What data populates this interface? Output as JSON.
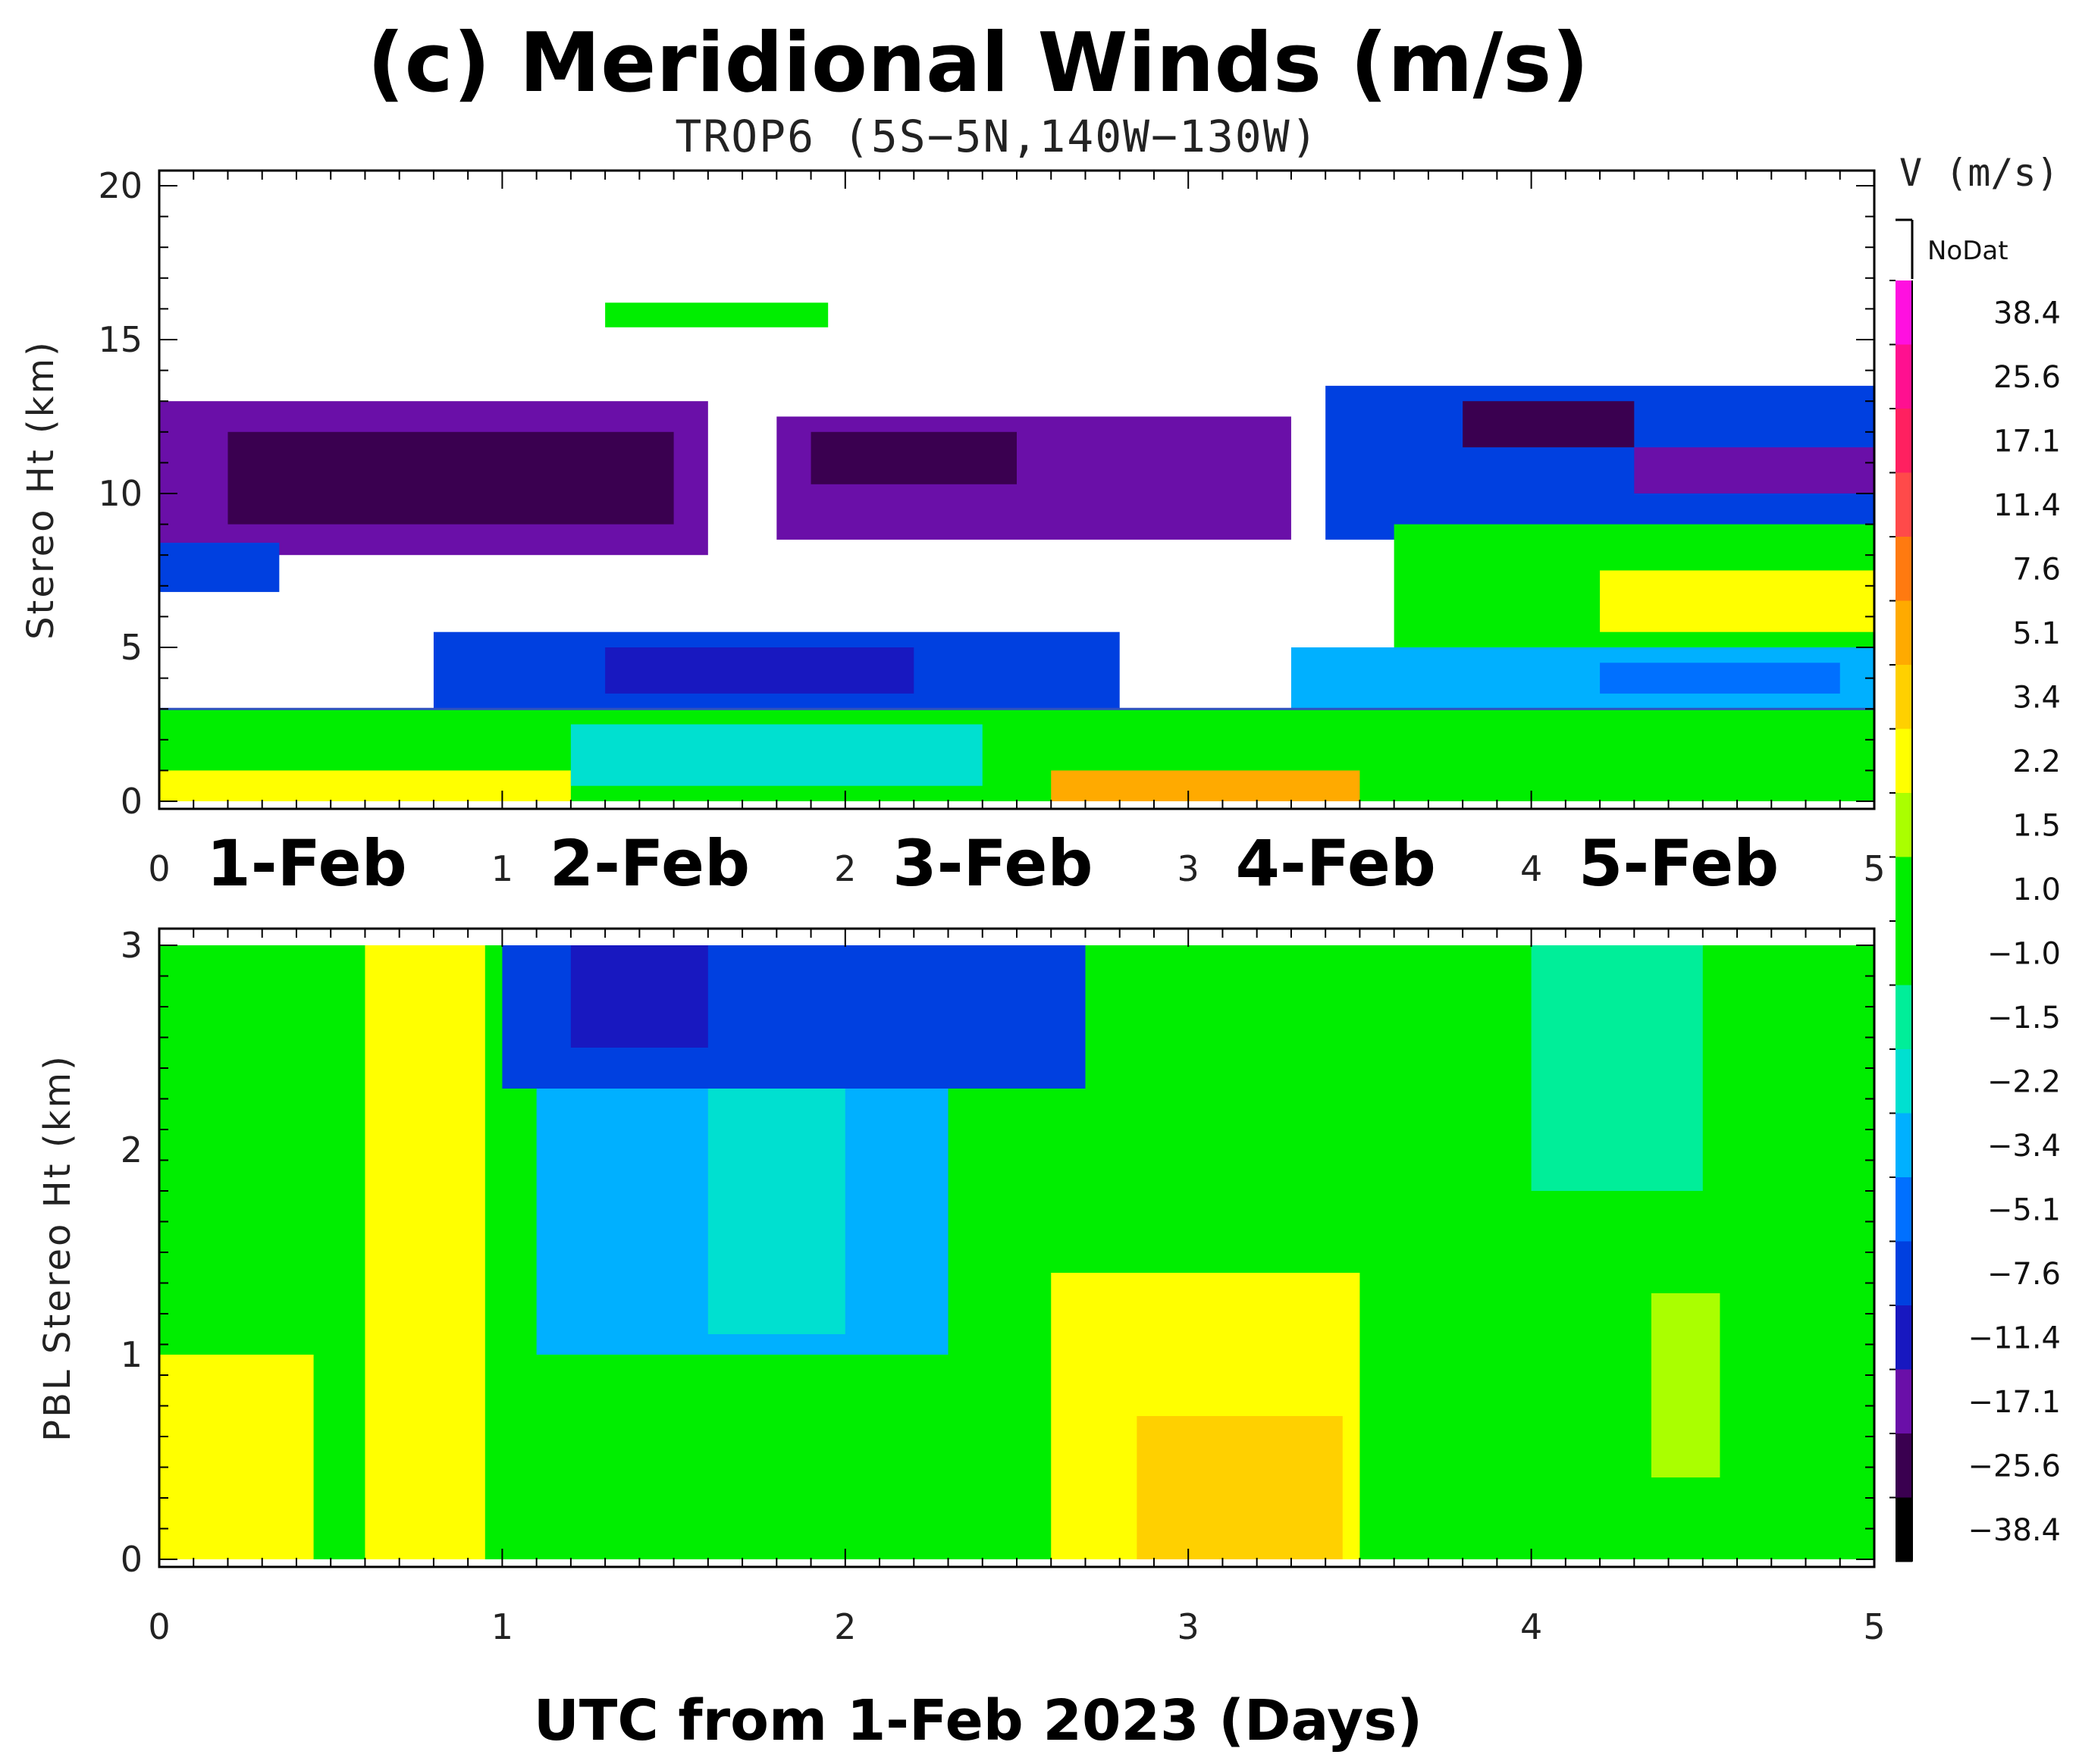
{
  "chart_data": [
    {
      "type": "heatmap",
      "title": "(c) Meridional Winds (m/s)",
      "subtitle": "TROP6 (5S−5N,140W−130W)",
      "xlabel": "",
      "ylabel": "Stereo Ht (km)",
      "xlim": [
        0,
        5
      ],
      "ylim": [
        0,
        20
      ],
      "x_ticks": [
        "0",
        "1",
        "2",
        "3",
        "4",
        "5"
      ],
      "y_ticks": [
        "0",
        "5",
        "10",
        "15",
        "20"
      ],
      "y_tick_values": [
        0,
        5,
        10,
        15,
        20
      ],
      "day_labels": [
        "1-Feb",
        "2-Feb",
        "3-Feb",
        "4-Feb",
        "5-Feb"
      ],
      "reference_line_height_km": 3.0,
      "regions": [
        {
          "x0": 0.0,
          "x1": 1.6,
          "y0": 8.0,
          "y1": 13.0,
          "v": -17.1
        },
        {
          "x0": 0.2,
          "x1": 1.5,
          "y0": 9.0,
          "y1": 12.0,
          "v": -25.6
        },
        {
          "x0": 0.0,
          "x1": 0.35,
          "y0": 6.8,
          "y1": 8.4,
          "v": -7.6
        },
        {
          "x0": 1.8,
          "x1": 3.3,
          "y0": 8.5,
          "y1": 12.5,
          "v": -17.1
        },
        {
          "x0": 1.9,
          "x1": 2.5,
          "y0": 10.3,
          "y1": 12.0,
          "v": -25.6
        },
        {
          "x0": 3.4,
          "x1": 5.0,
          "y0": 8.5,
          "y1": 13.5,
          "v": -7.6
        },
        {
          "x0": 3.8,
          "x1": 4.3,
          "y0": 11.5,
          "y1": 13.0,
          "v": -25.6
        },
        {
          "x0": 4.3,
          "x1": 5.0,
          "y0": 10.0,
          "y1": 11.5,
          "v": -17.1
        },
        {
          "x0": 1.3,
          "x1": 1.95,
          "y0": 15.4,
          "y1": 16.2,
          "v": 1.0
        },
        {
          "x0": 0.8,
          "x1": 2.8,
          "y0": 3.0,
          "y1": 5.5,
          "v": -7.6
        },
        {
          "x0": 1.3,
          "x1": 2.2,
          "y0": 3.5,
          "y1": 5.0,
          "v": -11.4
        },
        {
          "x0": 3.3,
          "x1": 5.0,
          "y0": 3.0,
          "y1": 5.0,
          "v": -3.4
        },
        {
          "x0": 4.2,
          "x1": 4.9,
          "y0": 3.5,
          "y1": 4.5,
          "v": -5.1
        },
        {
          "x0": 3.6,
          "x1": 5.0,
          "y0": 5.0,
          "y1": 9.0,
          "v": 1.0
        },
        {
          "x0": 4.2,
          "x1": 5.0,
          "y0": 5.5,
          "y1": 7.5,
          "v": 2.2
        },
        {
          "x0": 0.0,
          "x1": 5.0,
          "y0": 0.0,
          "y1": 3.0,
          "v": 1.0
        },
        {
          "x0": 0.0,
          "x1": 1.2,
          "y0": 0.0,
          "y1": 1.0,
          "v": 2.2
        },
        {
          "x0": 1.2,
          "x1": 2.4,
          "y0": 0.5,
          "y1": 2.5,
          "v": -2.2
        },
        {
          "x0": 2.6,
          "x1": 3.5,
          "y0": 0.0,
          "y1": 1.0,
          "v": 5.1
        }
      ]
    },
    {
      "type": "heatmap",
      "title": "",
      "xlabel": "UTC from 1-Feb 2023 (Days)",
      "ylabel": "PBL Stereo Ht (km)",
      "xlim": [
        0,
        5
      ],
      "ylim": [
        0,
        3
      ],
      "x_ticks": [
        "0",
        "1",
        "2",
        "3",
        "4",
        "5"
      ],
      "y_ticks": [
        "0",
        "1",
        "2",
        "3"
      ],
      "y_tick_values": [
        0,
        1,
        2,
        3
      ],
      "regions": [
        {
          "x0": 0.0,
          "x1": 5.0,
          "y0": 0.0,
          "y1": 3.0,
          "v": 1.0
        },
        {
          "x0": 0.0,
          "x1": 0.45,
          "y0": 0.0,
          "y1": 1.0,
          "v": 2.2
        },
        {
          "x0": 0.6,
          "x1": 0.95,
          "y0": 0.0,
          "y1": 3.0,
          "v": 2.2
        },
        {
          "x0": 1.1,
          "x1": 2.3,
          "y0": 1.0,
          "y1": 3.0,
          "v": -3.4
        },
        {
          "x0": 1.6,
          "x1": 2.0,
          "y0": 1.1,
          "y1": 2.4,
          "v": -2.2
        },
        {
          "x0": 1.0,
          "x1": 2.7,
          "y0": 2.3,
          "y1": 3.0,
          "v": -7.6
        },
        {
          "x0": 1.2,
          "x1": 1.6,
          "y0": 2.5,
          "y1": 3.0,
          "v": -11.4
        },
        {
          "x0": 2.6,
          "x1": 3.5,
          "y0": 0.0,
          "y1": 1.4,
          "v": 2.2
        },
        {
          "x0": 2.85,
          "x1": 3.45,
          "y0": 0.0,
          "y1": 0.7,
          "v": 3.4
        },
        {
          "x0": 4.35,
          "x1": 4.55,
          "y0": 0.4,
          "y1": 1.3,
          "v": 1.5
        },
        {
          "x0": 4.0,
          "x1": 4.5,
          "y0": 1.8,
          "y1": 3.0,
          "v": -1.5
        }
      ]
    }
  ],
  "colorbar": {
    "title": "V (m/s)",
    "nodata_label": "NoDat",
    "labels": [
      "38.4",
      "25.6",
      "17.1",
      "11.4",
      "7.6",
      "5.1",
      "3.4",
      "2.2",
      "1.5",
      "1.0",
      "−1.0",
      "−1.5",
      "−2.2",
      "−3.4",
      "−5.1",
      "−7.6",
      "−11.4",
      "−17.1",
      "−25.6",
      "−38.4"
    ],
    "colors": [
      "#ff10e0",
      "#ff1090",
      "#ff2060",
      "#ff4a4a",
      "#ff7a10",
      "#ffaa00",
      "#ffd000",
      "#ffff00",
      "#aaff00",
      "#00ee00",
      "#00ee00",
      "#00ee99",
      "#00e0d0",
      "#00b0ff",
      "#0070ff",
      "#0040e0",
      "#1818c0",
      "#6a0fa8",
      "#3a0050",
      "#000000"
    ]
  }
}
